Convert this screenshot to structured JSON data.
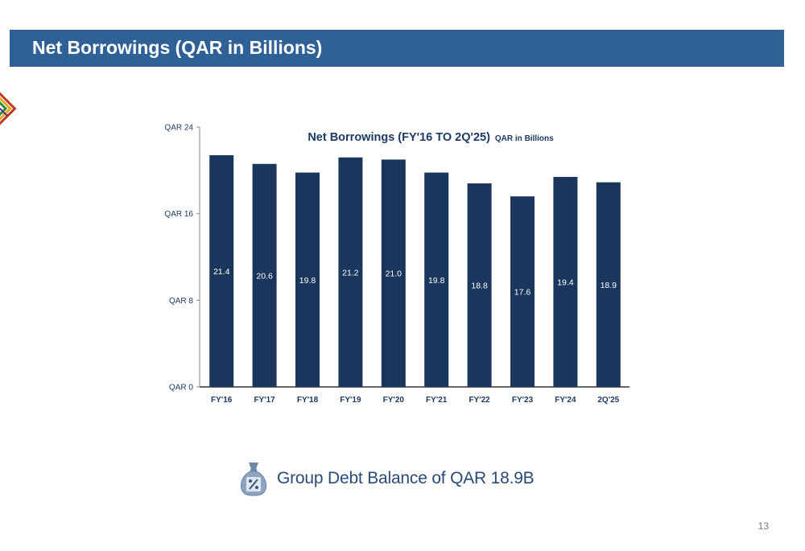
{
  "header": {
    "title": "Net Borrowings (QAR in Billions)"
  },
  "colors": {
    "header_bg": "#2f6096",
    "bar": "#1b365d",
    "text_dark": "#1d3a64"
  },
  "chart_data": {
    "type": "bar",
    "title": "Net Borrowings (FY'16 TO 2Q'25)",
    "subtitle": "QAR in Billions",
    "categories": [
      "FY'16",
      "FY'17",
      "FY'18",
      "FY'19",
      "FY'20",
      "FY'21",
      "FY'22",
      "FY'23",
      "FY'24",
      "2Q'25"
    ],
    "values": [
      21.4,
      20.6,
      19.8,
      21.2,
      21.0,
      19.8,
      18.8,
      17.6,
      19.4,
      18.9
    ],
    "value_labels": [
      "21.4",
      "20.6",
      "19.8",
      "21.2",
      "21.0",
      "19.8",
      "18.8",
      "17.6",
      "19.4",
      "18.9"
    ],
    "ylim": [
      0,
      24
    ],
    "yticks": [
      0,
      8,
      16,
      24
    ],
    "ytick_labels": [
      "QAR 0",
      "QAR 8",
      "QAR 16",
      "QAR 24"
    ],
    "grid": false,
    "legend": "none",
    "xlabel": "",
    "ylabel": ""
  },
  "summary": {
    "icon": "money-bag-percent-icon",
    "text": "Group Debt Balance of QAR 18.9B"
  },
  "page_number": "13"
}
